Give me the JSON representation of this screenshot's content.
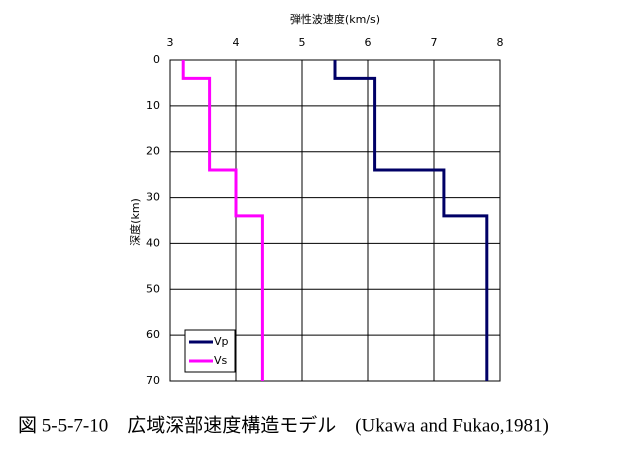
{
  "chart_data": {
    "type": "line",
    "x_label": "弾性波速度(km/s)",
    "y_label": "深度(km)",
    "caption": "図 5-5-7-10　広域深部速度構造モデル　(Ukawa and Fukao,1981)",
    "xlim": [
      3,
      8
    ],
    "xticks": [
      3,
      4,
      5,
      6,
      7,
      8
    ],
    "ylim": [
      0,
      70
    ],
    "yticks": [
      0,
      10,
      20,
      30,
      40,
      50,
      60,
      70
    ],
    "y_inverted": true,
    "x_axis_top": true,
    "grid": true,
    "legend": "lower left",
    "series": [
      {
        "name": "Vp",
        "color": "#000066",
        "x": [
          5.5,
          5.5,
          6.1,
          6.1,
          7.15,
          7.15,
          7.8,
          7.8
        ],
        "y": [
          0,
          4,
          4,
          24,
          24,
          34,
          34,
          70
        ]
      },
      {
        "name": "Vs",
        "color": "#ff00ff",
        "x": [
          3.2,
          3.2,
          3.6,
          3.6,
          4.0,
          4.0,
          4.4,
          4.4
        ],
        "y": [
          0,
          4,
          4,
          24,
          24,
          34,
          34,
          70
        ]
      }
    ]
  }
}
